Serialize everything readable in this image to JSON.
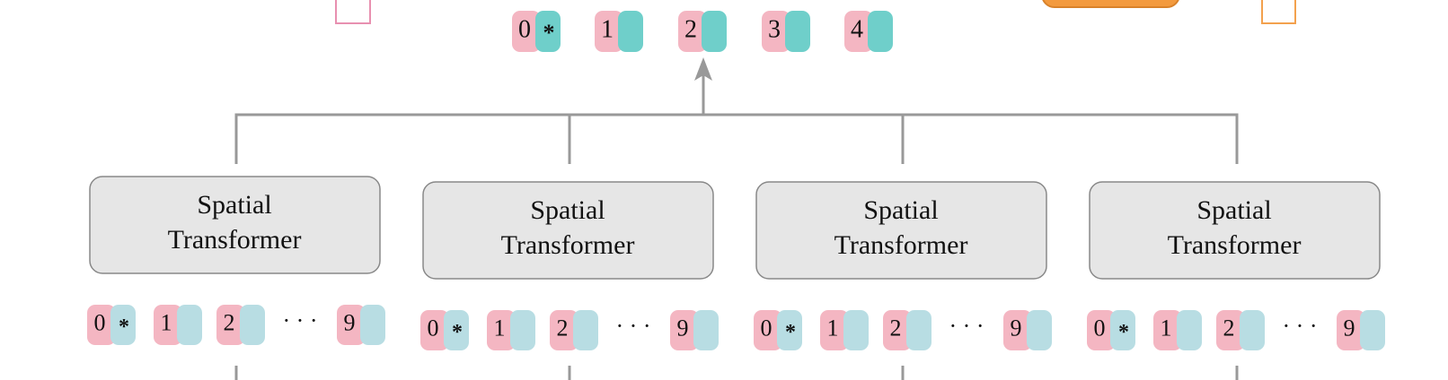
{
  "top_tokens": [
    {
      "index": "0",
      "marker": "*"
    },
    {
      "index": "1"
    },
    {
      "index": "2"
    },
    {
      "index": "3"
    },
    {
      "index": "4"
    }
  ],
  "blocks": [
    {
      "label_lines": [
        "Spatial",
        "Transformer"
      ],
      "tokens": [
        {
          "index": "0",
          "marker": "*"
        },
        {
          "index": "1"
        },
        {
          "index": "2"
        },
        {
          "index": "9"
        }
      ],
      "ellipsis": "· · ·"
    },
    {
      "label_lines": [
        "Spatial",
        "Transformer"
      ],
      "tokens": [
        {
          "index": "0",
          "marker": "*"
        },
        {
          "index": "1"
        },
        {
          "index": "2"
        },
        {
          "index": "9"
        }
      ],
      "ellipsis": "· · ·"
    },
    {
      "label_lines": [
        "Spatial",
        "Transformer"
      ],
      "tokens": [
        {
          "index": "0",
          "marker": "*"
        },
        {
          "index": "1"
        },
        {
          "index": "2"
        },
        {
          "index": "9"
        }
      ],
      "ellipsis": "· · ·"
    },
    {
      "label_lines": [
        "Spatial",
        "Transformer"
      ],
      "tokens": [
        {
          "index": "0",
          "marker": "*"
        },
        {
          "index": "1"
        },
        {
          "index": "2"
        },
        {
          "index": "9"
        }
      ],
      "ellipsis": "· · ·"
    }
  ]
}
